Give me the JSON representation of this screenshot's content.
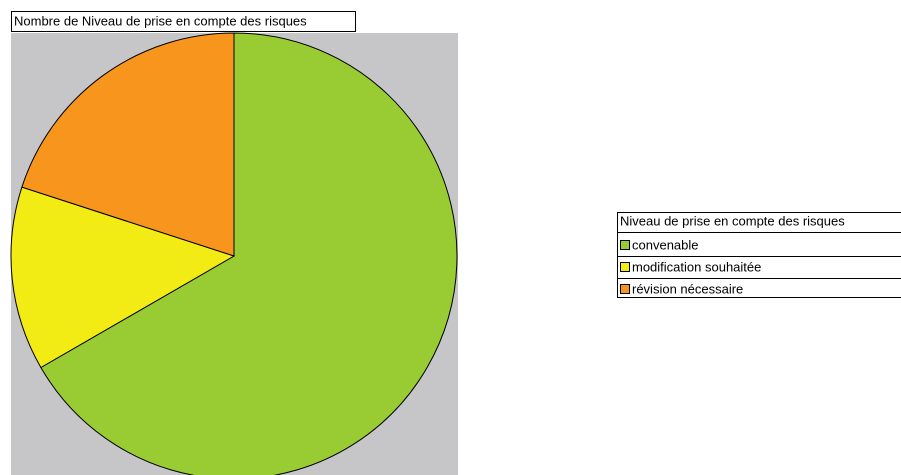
{
  "chart_data": {
    "type": "pie",
    "title": "Nombre de Niveau de prise en compte des risques",
    "legend_title": "Niveau de prise en compte des risques",
    "categories": [
      "convenable",
      "modification souhaitée",
      "révision nécessaire"
    ],
    "values": [
      10,
      2,
      3
    ],
    "colors": [
      "#99cc33",
      "#f2ec14",
      "#f7951d"
    ],
    "legend": "right"
  }
}
